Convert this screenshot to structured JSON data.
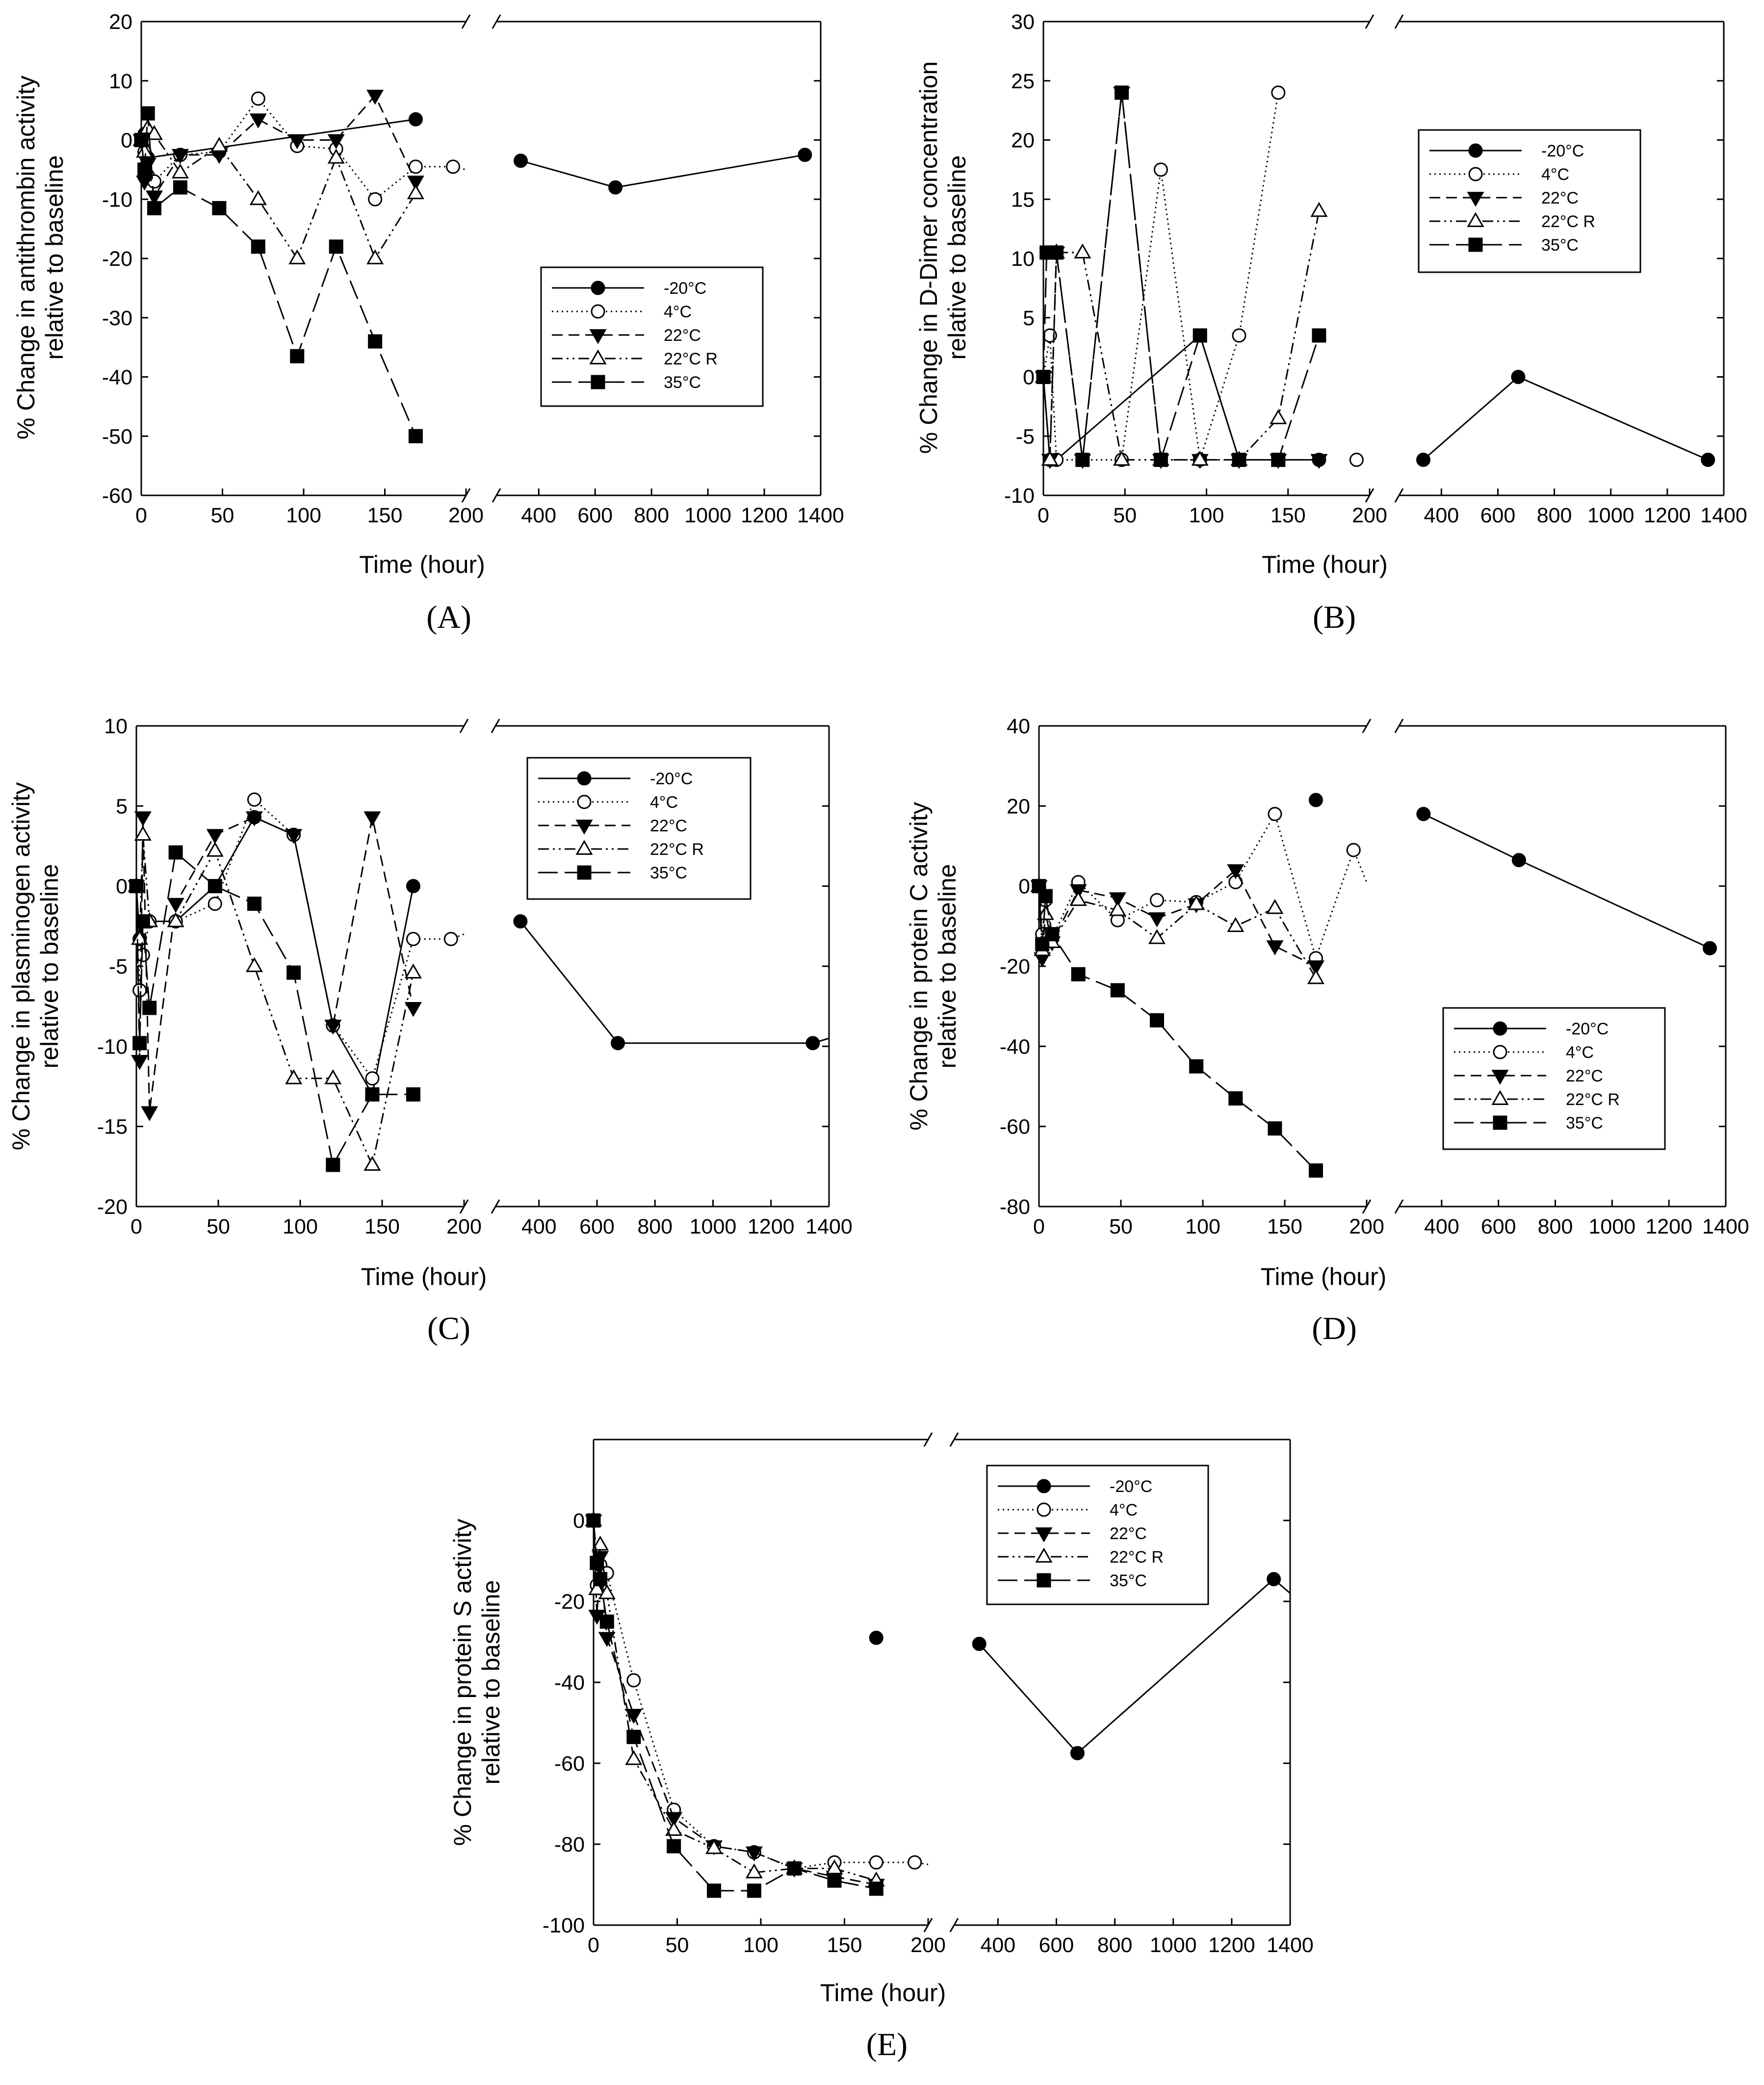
{
  "chart_data": [
    {
      "type": "line",
      "panel_label": "(A)",
      "ylabel_line1": "% Change in antithrombin activity",
      "ylabel_line2": "relative to baseline",
      "xlabel": "Time (hour)",
      "ylim": [
        -60,
        20
      ],
      "yticks": [
        "20",
        "10",
        "0",
        "-10",
        "-20",
        "-30",
        "-40",
        "-50",
        "-60"
      ],
      "yticks_values": [
        20,
        10,
        0,
        -10,
        -20,
        -30,
        -40,
        -50,
        -60
      ],
      "xlim_left": [
        0,
        200
      ],
      "xlim_right": [
        250,
        1400
      ],
      "xticks_left": [
        "0",
        "50",
        "100",
        "150",
        "200"
      ],
      "xticks_right": [
        "400",
        "600",
        "800",
        "1000",
        "1200",
        "1400"
      ],
      "legend": [
        "-20°C",
        "4°C",
        "22°C",
        "22°C R",
        "35°C"
      ],
      "series": [
        {
          "name": "-20°C",
          "x": [
            0,
            2,
            4,
            169
          ],
          "y": [
            0,
            1,
            -3,
            3.5
          ],
          "x2": [
            336,
            672,
            1344
          ],
          "y2": [
            -3.5,
            -8,
            -2.5
          ]
        },
        {
          "name": "4°C",
          "x": [
            0,
            2,
            4,
            8,
            24,
            48,
            72,
            96,
            120,
            144,
            169,
            192,
            200
          ],
          "y": [
            0,
            -2,
            -6,
            -7,
            -2.5,
            -2,
            7,
            -1,
            -1.5,
            -10,
            -4.5,
            -4.5,
            -5
          ]
        },
        {
          "name": "22°C",
          "x": [
            0,
            2,
            4,
            8,
            24,
            48,
            72,
            96,
            120,
            144,
            169
          ],
          "y": [
            0,
            -7,
            -4,
            -9.5,
            -2.5,
            -2.5,
            3.5,
            0,
            0,
            7.5,
            -7
          ]
        },
        {
          "name": "22°C R",
          "x": [
            0,
            2,
            4,
            8,
            24,
            48,
            72,
            96,
            120,
            144,
            169
          ],
          "y": [
            0,
            -2,
            2,
            1,
            -5.5,
            -1,
            -10,
            -20,
            -3,
            -20,
            -9
          ]
        },
        {
          "name": "35°C",
          "x": [
            0,
            2,
            4,
            8,
            24,
            48,
            72,
            96,
            120,
            144,
            169
          ],
          "y": [
            0,
            -5,
            4.5,
            -11.5,
            -8,
            -11.5,
            -18,
            -36.5,
            -18,
            -34,
            -50
          ]
        }
      ]
    },
    {
      "type": "line",
      "panel_label": "(B)",
      "ylabel_line1": "% Change in D-Dimer concentration",
      "ylabel_line2": "relative to baseline",
      "xlabel": "Time (hour)",
      "ylim": [
        -10,
        30
      ],
      "yticks": [
        "30",
        "25",
        "20",
        "15",
        "10",
        "5",
        "0",
        "-5",
        "-10"
      ],
      "yticks_values": [
        30,
        25,
        20,
        15,
        10,
        5,
        0,
        -5,
        -10
      ],
      "xlim_left": [
        0,
        200
      ],
      "xlim_right": [
        250,
        1400
      ],
      "xticks_left": [
        "0",
        "50",
        "100",
        "150",
        "200"
      ],
      "xticks_right": [
        "400",
        "600",
        "800",
        "1000",
        "1200",
        "1400"
      ],
      "legend": [
        "-20°C",
        "4°C",
        "22°C",
        "22°C R",
        "35°C"
      ],
      "series": [
        {
          "name": "-20°C",
          "x": [
            0,
            4,
            8,
            96,
            120,
            169
          ],
          "y": [
            0,
            -7,
            -7,
            3.5,
            -7,
            -7
          ],
          "x2": [
            336,
            672,
            1344
          ],
          "y2": [
            -7,
            0,
            -7
          ]
        },
        {
          "name": "4°C",
          "x": [
            0,
            4,
            8,
            24,
            48,
            72,
            96,
            120,
            144
          ],
          "y": [
            0,
            3.5,
            -7,
            -7,
            -7,
            17.5,
            -7,
            3.5,
            24
          ],
          "points_only_x": [
            192
          ],
          "points_only_y": [
            -7
          ]
        },
        {
          "name": "22°C",
          "x": [
            0,
            4,
            8,
            24,
            48,
            72,
            96,
            120,
            144,
            169
          ],
          "y": [
            0,
            -7,
            10.5,
            -7,
            24,
            -7,
            -7,
            -7,
            -7,
            -7
          ]
        },
        {
          "name": "22°C R",
          "x": [
            0,
            4,
            8,
            24,
            48,
            72,
            96,
            120,
            144,
            169
          ],
          "y": [
            0,
            -7,
            10.5,
            10.5,
            -7,
            -7,
            -7,
            -7,
            -3.5,
            14
          ]
        },
        {
          "name": "35°C",
          "x": [
            0,
            2,
            4,
            8,
            24,
            48,
            72,
            96,
            120,
            144,
            169
          ],
          "y": [
            0,
            10.5,
            10.5,
            10.5,
            -7,
            24,
            -7,
            3.5,
            -7,
            -7,
            3.5
          ]
        }
      ]
    },
    {
      "type": "line",
      "panel_label": "(C)",
      "ylabel_line1": "% Change in plasminogen activity",
      "ylabel_line2": "relative to baseline",
      "xlabel": "Time (hour)",
      "ylim": [
        -20,
        10
      ],
      "yticks": [
        "10",
        "5",
        "0",
        "-5",
        "-10",
        "-15",
        "-20"
      ],
      "yticks_values": [
        10,
        5,
        0,
        -5,
        -10,
        -15,
        -20
      ],
      "xlim_left": [
        0,
        200
      ],
      "xlim_right": [
        250,
        1400
      ],
      "xticks_left": [
        "0",
        "50",
        "100",
        "150",
        "200"
      ],
      "xticks_right": [
        "400",
        "600",
        "800",
        "1000",
        "1200",
        "1400"
      ],
      "legend": [
        "-20°C",
        "4°C",
        "22°C",
        "22°C R",
        "35°C"
      ],
      "series": [
        {
          "name": "-20°C",
          "x": [
            0,
            2,
            4,
            8,
            24,
            48,
            72,
            96,
            120,
            144,
            169
          ],
          "y": [
            0,
            -3.3,
            -2.2,
            -2.2,
            -2.2,
            0,
            4.3,
            3.2,
            -8.7,
            -13,
            0
          ],
          "x2": [
            336,
            672,
            1344,
            1400
          ],
          "y2": [
            -2.2,
            -9.8,
            -9.8,
            -9.5
          ]
        },
        {
          "name": "4°C",
          "x": [
            0,
            2,
            4,
            8,
            24,
            48,
            72,
            96,
            120,
            144,
            169,
            192,
            200
          ],
          "y": [
            0,
            -6.5,
            -4.3,
            -2.2,
            -2.2,
            -1.1,
            5.4,
            3.2,
            -8.7,
            -12,
            -3.3,
            -3.3,
            -3
          ]
        },
        {
          "name": "22°C",
          "x": [
            0,
            2,
            4,
            8,
            24,
            48,
            72,
            96,
            120,
            144,
            169
          ],
          "y": [
            0,
            -10.9,
            4.3,
            -14.1,
            -1.1,
            3.2,
            4.3,
            3.2,
            -8.7,
            4.3,
            -7.6
          ]
        },
        {
          "name": "22°C R",
          "x": [
            0,
            2,
            4,
            8,
            24,
            48,
            72,
            96,
            120,
            144,
            169
          ],
          "y": [
            0,
            -3.3,
            3.2,
            -2.2,
            -2.2,
            2.2,
            -5,
            -12,
            -12,
            -17.4,
            -5.4
          ]
        },
        {
          "name": "35°C",
          "x": [
            0,
            2,
            4,
            8,
            24,
            48,
            72,
            96,
            120,
            144,
            169
          ],
          "y": [
            0,
            -9.8,
            -2.2,
            -7.6,
            2.1,
            0,
            -1.1,
            -5.4,
            -17.4,
            -13,
            -13
          ]
        }
      ]
    },
    {
      "type": "line",
      "panel_label": "(D)",
      "ylabel_line1": "% Change in protein C activity",
      "ylabel_line2": "relative to baseline",
      "xlabel": "Time (hour)",
      "ylim": [
        -80,
        40
      ],
      "yticks": [
        "40",
        "20",
        "0",
        "-20",
        "-40",
        "-60",
        "-80"
      ],
      "yticks_values": [
        40,
        20,
        0,
        -20,
        -40,
        -60,
        -80
      ],
      "xlim_left": [
        0,
        200
      ],
      "xlim_right": [
        250,
        1400
      ],
      "xticks_left": [
        "0",
        "50",
        "100",
        "150",
        "200"
      ],
      "xticks_right": [
        "400",
        "600",
        "800",
        "1000",
        "1200",
        "1400"
      ],
      "legend": [
        "-20°C",
        "4°C",
        "22°C",
        "22°C R",
        "35°C"
      ],
      "series": [
        {
          "name": "-20°C",
          "x": [
            0,
            169
          ],
          "y": [
            0,
            21.5
          ],
          "points_only": true,
          "x2": [
            336,
            672,
            1344
          ],
          "y2": [
            18,
            6.5,
            -15.5
          ]
        },
        {
          "name": "4°C",
          "x": [
            0,
            2,
            4,
            8,
            24,
            48,
            72,
            96,
            120,
            144,
            169,
            192,
            200
          ],
          "y": [
            0,
            -12,
            -3.5,
            -13,
            1,
            -8.5,
            -3.5,
            -4,
            1,
            18,
            -18,
            9,
            1
          ]
        },
        {
          "name": "22°C",
          "x": [
            0,
            2,
            4,
            8,
            24,
            48,
            72,
            96,
            120,
            144,
            169
          ],
          "y": [
            0,
            -18,
            -15,
            -14,
            -1,
            -3,
            -8,
            -4.5,
            4,
            -15,
            -20
          ]
        },
        {
          "name": "22°C R",
          "x": [
            0,
            2,
            4,
            8,
            24,
            48,
            72,
            96,
            120,
            144,
            169
          ],
          "y": [
            0,
            -16,
            -7,
            -14,
            -3.5,
            -6,
            -13,
            -4.5,
            -10,
            -5.5,
            -23
          ]
        },
        {
          "name": "35°C",
          "x": [
            0,
            2,
            4,
            8,
            24,
            48,
            72,
            96,
            120,
            144,
            169
          ],
          "y": [
            0,
            -14.5,
            -2.5,
            -12,
            -22,
            -26,
            -33.5,
            -45,
            -53,
            -60.5,
            -71
          ]
        }
      ]
    },
    {
      "type": "line",
      "panel_label": "(E)",
      "ylabel_line1": "% Change in protein S activity",
      "ylabel_line2": "relative to baseline",
      "xlabel": "Time (hour)",
      "ylim": [
        -100,
        20
      ],
      "yticks": [
        "0",
        "-20",
        "-40",
        "-60",
        "-80",
        "-100"
      ],
      "yticks_values": [
        0,
        -20,
        -40,
        -60,
        -80,
        -100
      ],
      "xlim_left": [
        0,
        200
      ],
      "xlim_right": [
        250,
        1400
      ],
      "xticks_left": [
        "0",
        "50",
        "100",
        "150",
        "200"
      ],
      "xticks_right": [
        "400",
        "600",
        "800",
        "1000",
        "1200",
        "1400"
      ],
      "legend": [
        "-20°C",
        "4°C",
        "22°C",
        "22°C R",
        "35°C"
      ],
      "series": [
        {
          "name": "-20°C",
          "x": [
            0,
            169
          ],
          "y": [
            0,
            -29
          ],
          "points_only": true,
          "x2": [
            336,
            672,
            1344,
            1400
          ],
          "y2": [
            -30.5,
            -57.5,
            -14.5,
            -18
          ]
        },
        {
          "name": "4°C",
          "x": [
            0,
            2,
            4,
            8,
            24,
            48,
            72,
            96,
            120,
            144,
            169,
            192,
            200
          ],
          "y": [
            0,
            -16,
            -11,
            -13,
            -39.5,
            -71.5,
            -80.5,
            -82,
            -86,
            -84.5,
            -84.5,
            -84.5,
            -85
          ]
        },
        {
          "name": "22°C",
          "x": [
            0,
            2,
            4,
            8,
            24,
            48,
            72,
            96,
            120,
            144,
            169
          ],
          "y": [
            0,
            -23.5,
            -9,
            -29,
            -48,
            -73.5,
            -80.5,
            -82,
            -86,
            -88,
            -90
          ]
        },
        {
          "name": "22°C R",
          "x": [
            0,
            2,
            4,
            8,
            24,
            48,
            72,
            96,
            120,
            144,
            169
          ],
          "y": [
            0,
            -17,
            -6,
            -18,
            -59,
            -76.5,
            -81,
            -87,
            -86,
            -86,
            -89
          ]
        },
        {
          "name": "35°C",
          "x": [
            0,
            2,
            4,
            8,
            24,
            48,
            72,
            96,
            120,
            144,
            169
          ],
          "y": [
            0,
            -10.5,
            -14.5,
            -25,
            -53.5,
            -80.5,
            -91.5,
            -91.5,
            -86,
            -89,
            -91
          ]
        }
      ]
    }
  ]
}
